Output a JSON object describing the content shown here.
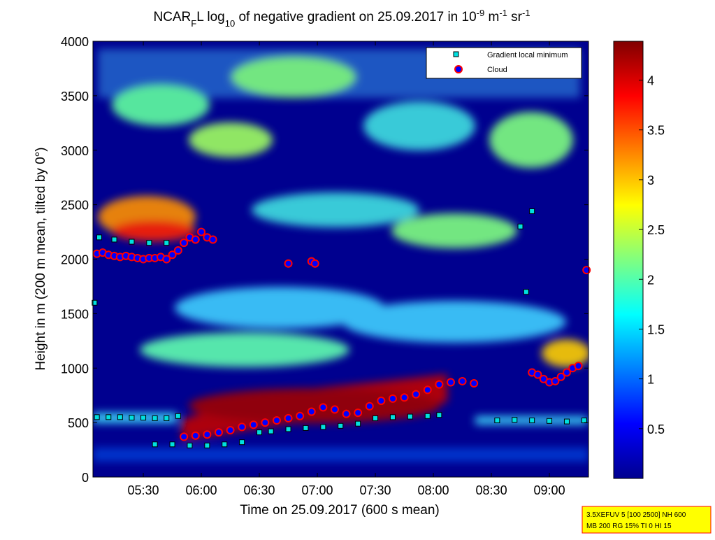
{
  "chart_data": {
    "type": "scatter",
    "title": [
      {
        "text": "NCAR"
      },
      {
        "text": "F",
        "script": "sub"
      },
      {
        "text": "L log"
      },
      {
        "text": "10",
        "script": "sub"
      },
      {
        "text": " of negative gradient on 25.09.2017 in 10"
      },
      {
        "text": "-9",
        "script": "sup"
      },
      {
        "text": " m"
      },
      {
        "text": "-1",
        "script": "sup"
      },
      {
        "text": " sr"
      },
      {
        "text": "-1",
        "script": "sup"
      }
    ],
    "xlabel": "Time on 25.09.2017 (600 s mean)",
    "ylabel": "Height in m (200 m mean, tilted by 0°)",
    "xlim": [
      5.066,
      9.337
    ],
    "xticks": [
      {
        "value": 5.5,
        "label": "05:30"
      },
      {
        "value": 6,
        "label": "06:00"
      },
      {
        "value": 6.5,
        "label": "06:30"
      },
      {
        "value": 7,
        "label": "07:00"
      },
      {
        "value": 7.5,
        "label": "07:30"
      },
      {
        "value": 8,
        "label": "08:00"
      },
      {
        "value": 8.5,
        "label": "08:30"
      },
      {
        "value": 9,
        "label": "09:00"
      }
    ],
    "ylim": [
      0,
      4000
    ],
    "yticks": [
      0,
      500,
      1000,
      1500,
      2000,
      2500,
      3000,
      3500,
      4000
    ],
    "clim": [
      0,
      4.39
    ],
    "cticks": [
      0.5,
      1,
      1.5,
      2,
      2.5,
      3,
      3.5,
      4
    ],
    "colormap": [
      "#00008f",
      "#0000ff",
      "#0080ff",
      "#00ffff",
      "#80ff80",
      "#ffff00",
      "#ff8000",
      "#ff0000",
      "#800000"
    ],
    "legend": "upper right",
    "series": [
      {
        "name": "Gradient local minimum",
        "marker": "square",
        "color": "#00e0e0",
        "edgecolor": "#000000",
        "x": [
          5.1,
          5.2,
          5.3,
          5.4,
          5.5,
          5.6,
          5.7,
          5.8,
          5.6,
          5.75,
          5.9,
          6.05,
          6.2,
          6.35,
          6.5,
          6.6,
          6.75,
          6.9,
          7.05,
          7.2,
          7.35,
          7.5,
          7.65,
          7.8,
          7.95,
          8.05,
          8.55,
          8.7,
          8.85,
          9.0,
          9.15,
          9.3,
          5.12,
          5.25,
          5.4,
          5.55,
          5.7,
          8.75,
          8.85,
          8.8,
          5.08
        ],
        "y": [
          550,
          550,
          550,
          545,
          545,
          540,
          540,
          560,
          300,
          300,
          290,
          290,
          300,
          320,
          410,
          420,
          440,
          450,
          460,
          470,
          490,
          540,
          550,
          555,
          560,
          570,
          520,
          525,
          520,
          515,
          510,
          520,
          2200,
          2180,
          2160,
          2150,
          2150,
          2300,
          2440,
          1700,
          1600
        ]
      },
      {
        "name": "Cloud",
        "marker": "circle",
        "color": "#0000ff",
        "edgecolor": "#ff0000",
        "x": [
          5.1,
          5.15,
          5.2,
          5.25,
          5.3,
          5.35,
          5.4,
          5.45,
          5.5,
          5.55,
          5.6,
          5.65,
          5.7,
          5.75,
          5.8,
          5.85,
          5.9,
          5.95,
          6.0,
          6.05,
          6.1,
          6.75,
          6.95,
          6.98,
          5.85,
          5.95,
          6.05,
          6.15,
          6.25,
          6.35,
          6.45,
          6.55,
          6.65,
          6.75,
          6.85,
          6.95,
          7.05,
          7.15,
          7.25,
          7.35,
          7.45,
          7.55,
          7.65,
          7.75,
          7.85,
          7.95,
          8.05,
          8.15,
          8.25,
          8.35,
          8.85,
          8.9,
          8.95,
          9.0,
          9.05,
          9.1,
          9.15,
          9.2,
          9.25,
          9.32
        ],
        "y": [
          2050,
          2060,
          2040,
          2030,
          2020,
          2030,
          2020,
          2010,
          2000,
          2010,
          2010,
          2020,
          2000,
          2040,
          2080,
          2150,
          2200,
          2180,
          2250,
          2200,
          2180,
          1960,
          1980,
          1960,
          370,
          380,
          390,
          410,
          430,
          460,
          480,
          500,
          520,
          540,
          560,
          600,
          640,
          620,
          580,
          590,
          650,
          700,
          720,
          730,
          760,
          800,
          850,
          870,
          880,
          860,
          960,
          940,
          900,
          870,
          880,
          920,
          960,
          1000,
          1020,
          1900
        ]
      }
    ],
    "info": [
      "3.5XEFUV 5 [100 2500] NH 600",
      "MB 200 RG 15% TI 0 HI 15"
    ]
  }
}
